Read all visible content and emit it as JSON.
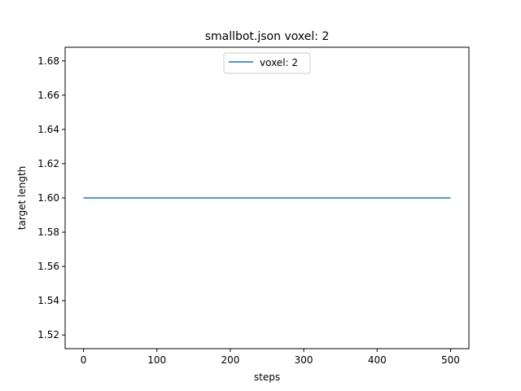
{
  "chart_data": {
    "type": "line",
    "title": "smallbot.json voxel: 2",
    "xlabel": "steps",
    "ylabel": "target length",
    "xlim": [
      -25,
      525
    ],
    "ylim": [
      1.512,
      1.688
    ],
    "xticks": [
      0,
      100,
      200,
      300,
      400,
      500
    ],
    "yticks": [
      1.52,
      1.54,
      1.56,
      1.58,
      1.6,
      1.62,
      1.64,
      1.66,
      1.68
    ],
    "xtick_labels": [
      "0",
      "100",
      "200",
      "300",
      "400",
      "500"
    ],
    "ytick_labels": [
      "1.52",
      "1.54",
      "1.56",
      "1.58",
      "1.60",
      "1.62",
      "1.64",
      "1.66",
      "1.68"
    ],
    "grid": false,
    "legend_position": "upper center",
    "series": [
      {
        "name": "voxel: 2",
        "color": "#1f77b4",
        "x": [
          0,
          500
        ],
        "y": [
          1.6,
          1.6
        ]
      }
    ]
  }
}
